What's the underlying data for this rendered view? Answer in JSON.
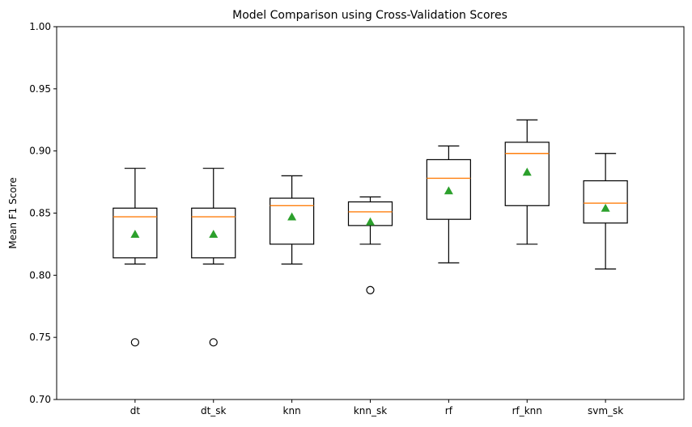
{
  "chart_data": {
    "type": "box",
    "title": "Model Comparison using Cross-Validation Scores",
    "xlabel": "",
    "ylabel": "Mean F1 Score",
    "ylim": [
      0.7,
      1.0
    ],
    "yticks": [
      "0.70",
      "0.75",
      "0.80",
      "0.85",
      "0.90",
      "0.95",
      "1.00"
    ],
    "grid": false,
    "colors": {
      "box": "#000000",
      "median": "#ff7f0e",
      "mean": "#2ca02c",
      "outlier": "#000000"
    },
    "categories": [
      "dt",
      "dt_sk",
      "knn",
      "knn_sk",
      "rf",
      "rf_knn",
      "svm_sk"
    ],
    "boxes": [
      {
        "label": "dt",
        "whisker_low": 0.809,
        "q1": 0.814,
        "median": 0.847,
        "q3": 0.854,
        "whisker_high": 0.886,
        "mean": 0.833,
        "outliers": [
          0.746
        ]
      },
      {
        "label": "dt_sk",
        "whisker_low": 0.809,
        "q1": 0.814,
        "median": 0.847,
        "q3": 0.854,
        "whisker_high": 0.886,
        "mean": 0.833,
        "outliers": [
          0.746
        ]
      },
      {
        "label": "knn",
        "whisker_low": 0.809,
        "q1": 0.825,
        "median": 0.856,
        "q3": 0.862,
        "whisker_high": 0.88,
        "mean": 0.847,
        "outliers": []
      },
      {
        "label": "knn_sk",
        "whisker_low": 0.825,
        "q1": 0.84,
        "median": 0.851,
        "q3": 0.859,
        "whisker_high": 0.863,
        "mean": 0.843,
        "outliers": [
          0.788
        ]
      },
      {
        "label": "rf",
        "whisker_low": 0.81,
        "q1": 0.845,
        "median": 0.878,
        "q3": 0.893,
        "whisker_high": 0.904,
        "mean": 0.868,
        "outliers": []
      },
      {
        "label": "rf_knn",
        "whisker_low": 0.825,
        "q1": 0.856,
        "median": 0.898,
        "q3": 0.907,
        "whisker_high": 0.925,
        "mean": 0.883,
        "outliers": []
      },
      {
        "label": "svm_sk",
        "whisker_low": 0.805,
        "q1": 0.842,
        "median": 0.858,
        "q3": 0.876,
        "whisker_high": 0.898,
        "mean": 0.854,
        "outliers": []
      }
    ]
  }
}
